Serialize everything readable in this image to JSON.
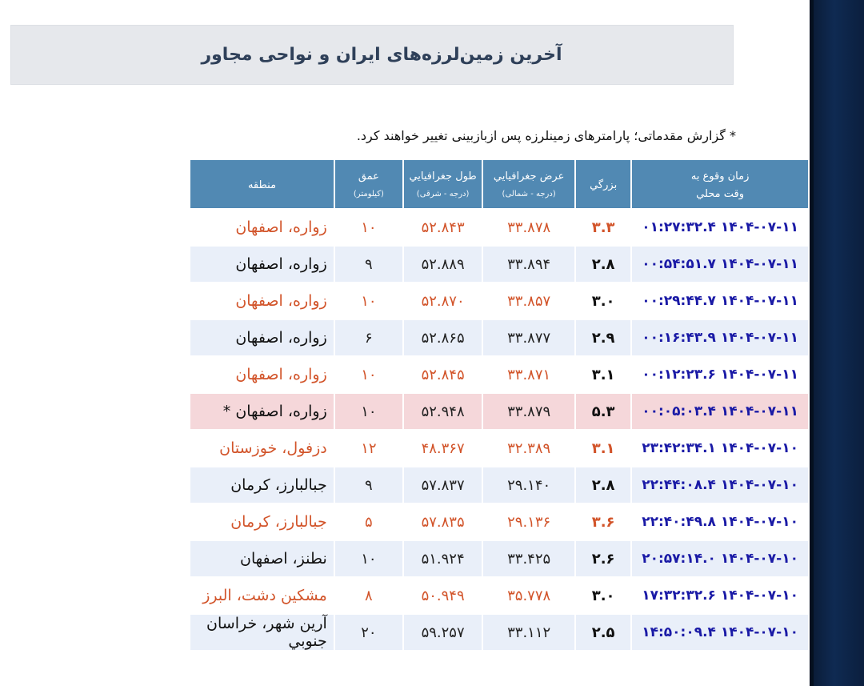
{
  "title": "آخرین زمین‌لرزه‌های ایران و نواحی مجاور",
  "note": "* گزارش مقدماتی؛ پارامترهای زمینلرزه پس ازبازبینی تغییر خواهند کرد.",
  "table": {
    "headers": {
      "time": "زمان وقوع به",
      "time_sub": "وقت محلي",
      "magnitude": "بزرگي",
      "latitude": "عرض جغرافيايي",
      "latitude_sub": "(درجه - شمالی)",
      "longitude": "طول جغرافيايي",
      "longitude_sub": "(درجه - شرقی)",
      "depth": "عمق",
      "depth_sub": "(کیلومتر)",
      "region": "منطقه"
    },
    "rows": [
      {
        "time": "۱۴۰۴-۰۷-۱۱ ۰۱:۲۷:۳۲.۴",
        "magnitude": "۳.۳",
        "latitude": "۳۳.۸۷۸",
        "longitude": "۵۲.۸۴۳",
        "depth": "۱۰",
        "region": "زواره، اصفهان"
      },
      {
        "time": "۱۴۰۴-۰۷-۱۱ ۰۰:۵۴:۵۱.۷",
        "magnitude": "۲.۸",
        "latitude": "۳۳.۸۹۴",
        "longitude": "۵۲.۸۸۹",
        "depth": "۹",
        "region": "زواره، اصفهان"
      },
      {
        "time": "۱۴۰۴-۰۷-۱۱ ۰۰:۲۹:۴۴.۷",
        "magnitude": "۳.۰",
        "latitude": "۳۳.۸۵۷",
        "longitude": "۵۲.۸۷۰",
        "depth": "۱۰",
        "region": "زواره، اصفهان"
      },
      {
        "time": "۱۴۰۴-۰۷-۱۱ ۰۰:۱۶:۴۳.۹",
        "magnitude": "۲.۹",
        "latitude": "۳۳.۸۷۷",
        "longitude": "۵۲.۸۶۵",
        "depth": "۶",
        "region": "زواره، اصفهان"
      },
      {
        "time": "۱۴۰۴-۰۷-۱۱ ۰۰:۱۲:۲۳.۶",
        "magnitude": "۳.۱",
        "latitude": "۳۳.۸۷۱",
        "longitude": "۵۲.۸۴۵",
        "depth": "۱۰",
        "region": "زواره، اصفهان"
      },
      {
        "time": "۱۴۰۴-۰۷-۱۱ ۰۰:۰۵:۰۳.۴",
        "magnitude": "۵.۳",
        "latitude": "۳۳.۸۷۹",
        "longitude": "۵۲.۹۴۸",
        "depth": "۱۰",
        "region": "زواره، اصفهان *"
      },
      {
        "time": "۱۴۰۴-۰۷-۱۰ ۲۳:۴۲:۳۴.۱",
        "magnitude": "۳.۱",
        "latitude": "۳۲.۳۸۹",
        "longitude": "۴۸.۳۶۷",
        "depth": "۱۲",
        "region": "دزفول، خوزستان"
      },
      {
        "time": "۱۴۰۴-۰۷-۱۰ ۲۲:۴۴:۰۸.۴",
        "magnitude": "۲.۸",
        "latitude": "۲۹.۱۴۰",
        "longitude": "۵۷.۸۳۷",
        "depth": "۹",
        "region": "جبالبارز، کرمان"
      },
      {
        "time": "۱۴۰۴-۰۷-۱۰ ۲۲:۴۰:۴۹.۸",
        "magnitude": "۳.۶",
        "latitude": "۲۹.۱۳۶",
        "longitude": "۵۷.۸۳۵",
        "depth": "۵",
        "region": "جبالبارز، کرمان"
      },
      {
        "time": "۱۴۰۴-۰۷-۱۰ ۲۰:۵۷:۱۴.۰",
        "magnitude": "۲.۶",
        "latitude": "۳۳.۴۲۵",
        "longitude": "۵۱.۹۲۴",
        "depth": "۱۰",
        "region": "نطنز، اصفهان"
      },
      {
        "time": "۱۴۰۴-۰۷-۱۰ ۱۷:۳۲:۳۲.۶",
        "magnitude": "۳.۰",
        "latitude": "۳۵.۷۷۸",
        "longitude": "۵۰.۹۴۹",
        "depth": "۸",
        "region": "مشکین دشت، البرز"
      },
      {
        "time": "۱۴۰۴-۰۷-۱۰ ۱۴:۵۰:۰۹.۴",
        "magnitude": "۲.۵",
        "latitude": "۳۳.۱۱۲",
        "longitude": "۵۹.۲۵۷",
        "depth": "۲۰",
        "region": "آرین شهر، خراسان جنوبي"
      }
    ]
  },
  "colors": {
    "header_bg": "#5189b3",
    "time_text": "#1a1aa6",
    "orange_text": "#d2542a",
    "highlight_row": "#f5d7da",
    "alt_row": "#e9eff9"
  }
}
